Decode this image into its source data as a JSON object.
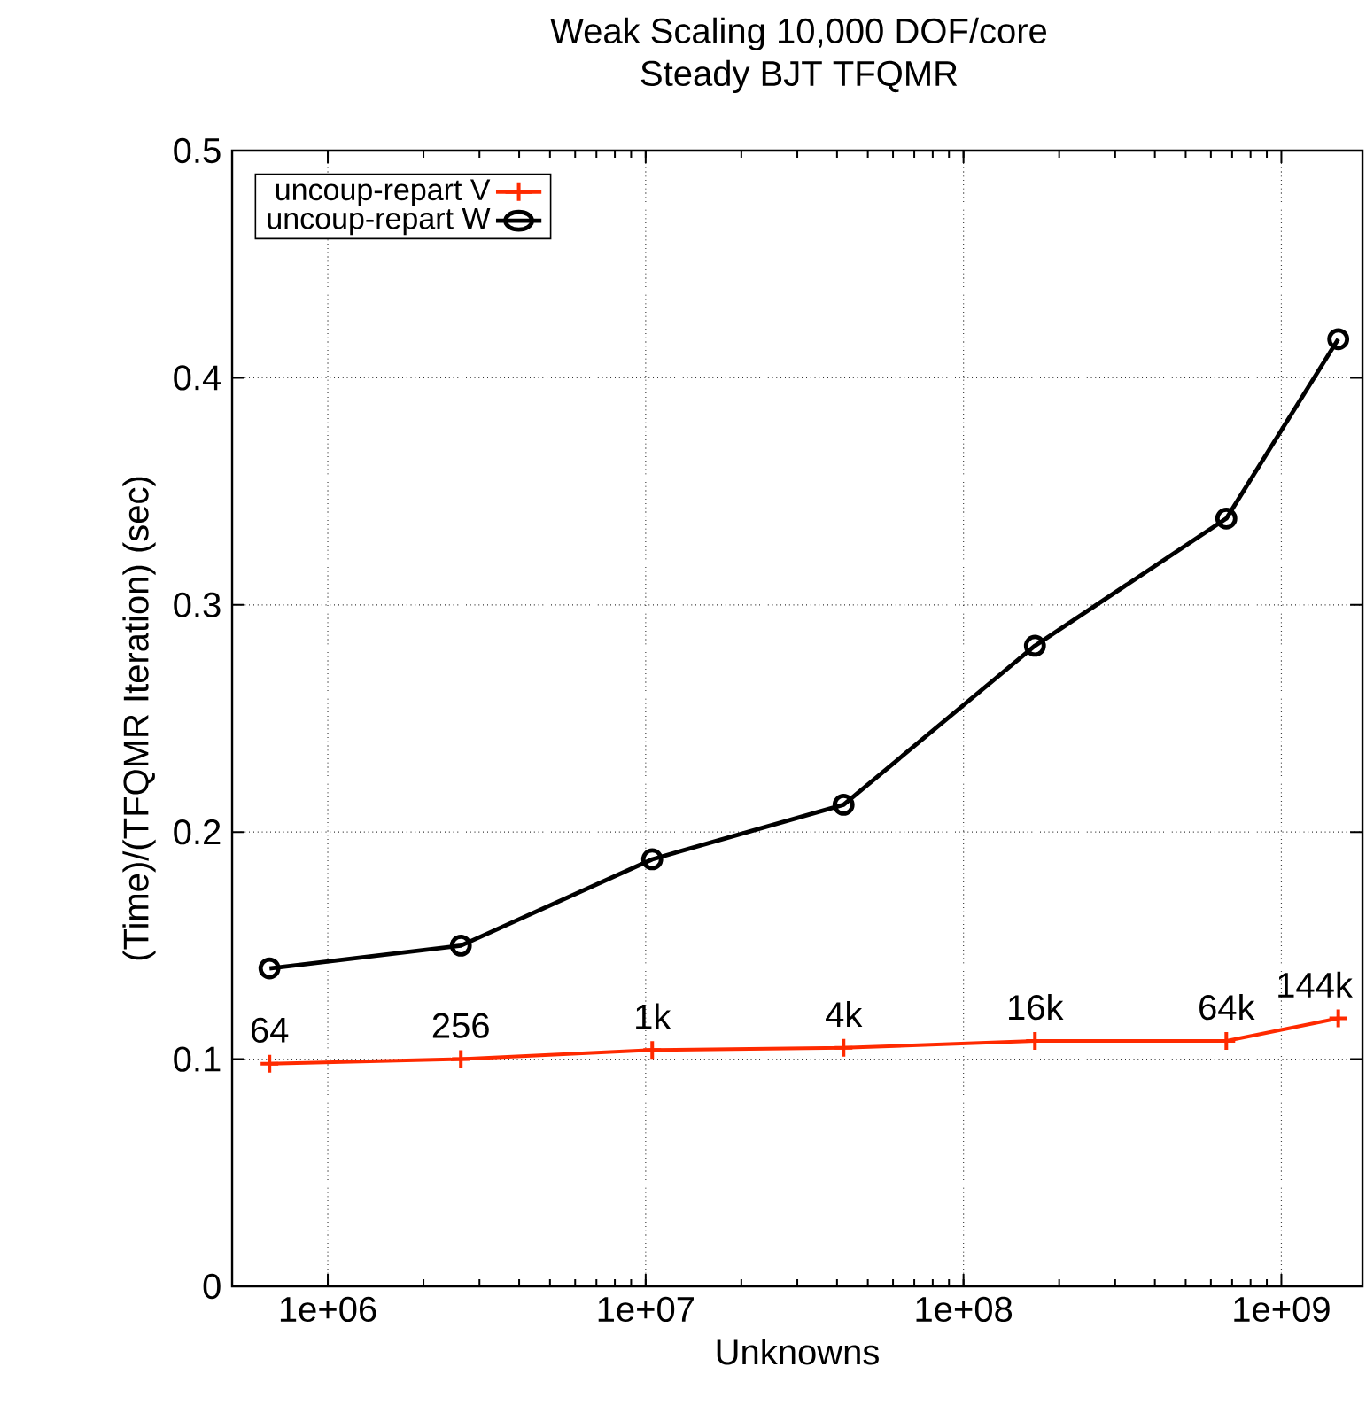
{
  "chart_data": {
    "type": "line",
    "title": "Weak Scaling 10,000 DOF/core",
    "subtitle": "Steady BJT TFQMR",
    "xlabel": "Unknowns",
    "ylabel": "(Time)/(TFQMR Iteration) (sec)",
    "log": "x",
    "grid": true,
    "legend": "top left",
    "xlim": [
      500000,
      1800000000
    ],
    "ylim": [
      0,
      0.5
    ],
    "xticks": [
      {
        "value": 1000000,
        "label": "1e+06"
      },
      {
        "value": 10000000,
        "label": "1e+07"
      },
      {
        "value": 100000000,
        "label": "1e+08"
      },
      {
        "value": 1000000000,
        "label": "1e+09"
      }
    ],
    "yticks": [
      0,
      0.1,
      0.2,
      0.3,
      0.4,
      0.5
    ],
    "x": [
      655360,
      2621440,
      10485760,
      41943040,
      167772160,
      671088640,
      1509949440
    ],
    "series": [
      {
        "name": "uncoup-repart V",
        "color": "#ff2a00",
        "marker": "cross",
        "values": [
          0.098,
          0.1,
          0.104,
          0.105,
          0.108,
          0.108,
          0.118
        ]
      },
      {
        "name": "uncoup-repart W",
        "color": "#000000",
        "marker": "circle",
        "values": [
          0.14,
          0.15,
          0.188,
          0.212,
          0.282,
          0.338,
          0.417
        ]
      }
    ],
    "annotations": [
      {
        "text": "64",
        "x": 655360,
        "y": 0.098
      },
      {
        "text": "256",
        "x": 2621440,
        "y": 0.1
      },
      {
        "text": "1k",
        "x": 10485760,
        "y": 0.104
      },
      {
        "text": "4k",
        "x": 41943040,
        "y": 0.105
      },
      {
        "text": "16k",
        "x": 167772160,
        "y": 0.108
      },
      {
        "text": "64k",
        "x": 671088640,
        "y": 0.108
      },
      {
        "text": "144k",
        "x": 1509949440,
        "y": 0.118
      }
    ]
  }
}
